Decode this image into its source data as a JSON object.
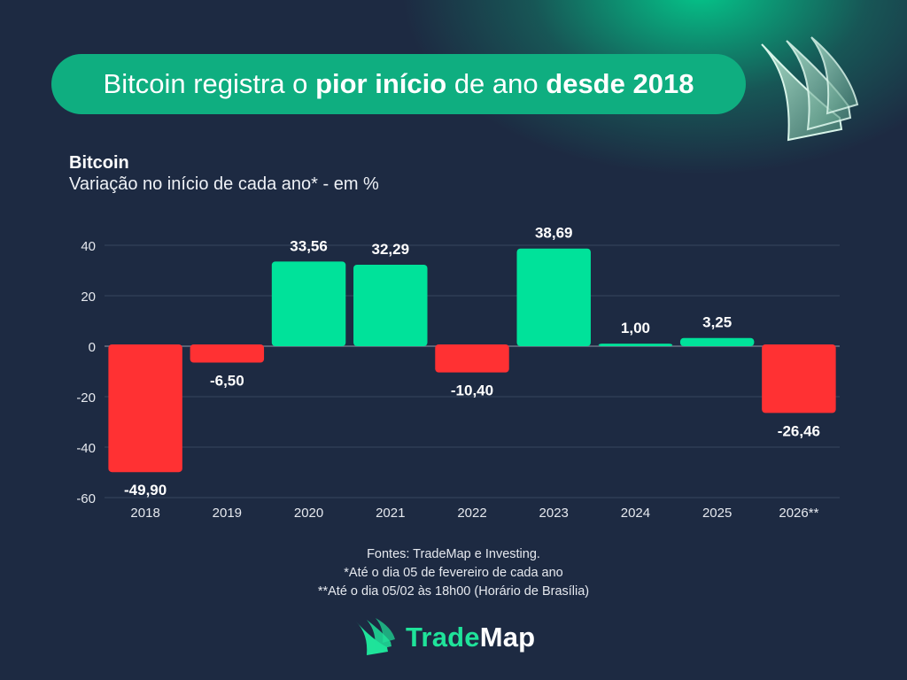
{
  "header": {
    "title_parts": [
      {
        "text": "Bitcoin registra o ",
        "bold": false
      },
      {
        "text": "pior início",
        "bold": true
      },
      {
        "text": " de ano ",
        "bold": false
      },
      {
        "text": "desde 2018",
        "bold": true
      }
    ]
  },
  "colors": {
    "background": "#1d2a42",
    "accent": "#0fae80",
    "positive": "#00e29a",
    "negative": "#ff3133"
  },
  "chart_data": {
    "type": "bar",
    "title": "Bitcoin",
    "subtitle": "Variação no início de cada ano* - em %",
    "xlabel": "",
    "ylabel": "",
    "categories": [
      "2018",
      "2019",
      "2020",
      "2021",
      "2022",
      "2023",
      "2024",
      "2025",
      "2026**"
    ],
    "values": [
      -49.9,
      -6.5,
      33.56,
      32.29,
      -10.4,
      38.69,
      1.0,
      3.25,
      -26.46
    ],
    "value_labels": [
      "-49,90",
      "-6,50",
      "33,56",
      "32,29",
      "-10,40",
      "38,69",
      "1,00",
      "3,25",
      "-26,46"
    ],
    "ylim": [
      -60,
      40
    ],
    "yticks": [
      40,
      20,
      0,
      -20,
      -40,
      -60
    ],
    "ytick_labels": [
      "40",
      "20",
      "0",
      "-20",
      "-40",
      "-60"
    ],
    "grid": true,
    "legend": "none"
  },
  "footnotes": [
    "Fontes: TradeMap e Investing.",
    "*Até o dia 05 de fevereiro de cada ano",
    "**Até o dia 05/02 às 18h00 (Horário de Brasília)"
  ],
  "brand": {
    "name_part1": "Trade",
    "name_part2": "Map",
    "logo_icon": "trademap-sails-icon"
  }
}
